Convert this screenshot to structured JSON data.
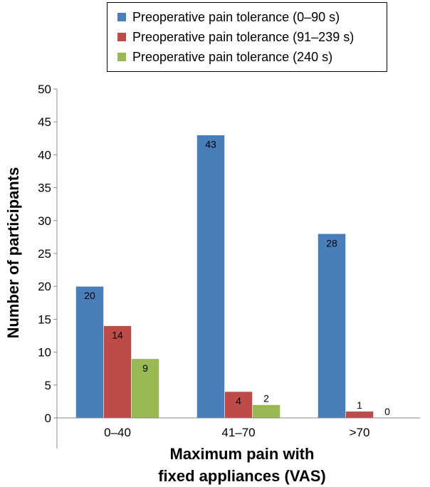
{
  "chart_data": {
    "type": "bar",
    "title": "",
    "xlabel": "Maximum pain with fixed appliances (VAS)",
    "xlabel_lines": [
      "Maximum pain with",
      "fixed appliances (VAS)"
    ],
    "ylabel": "Number of participants",
    "ylim": [
      0,
      50
    ],
    "yticks": [
      0,
      5,
      10,
      15,
      20,
      25,
      30,
      35,
      40,
      45,
      50
    ],
    "categories": [
      "0–40",
      "41–70",
      ">70"
    ],
    "series": [
      {
        "name": "Preoperative pain tolerance (0–90 s)",
        "color": "#4a7ebb",
        "values": [
          20,
          43,
          28
        ]
      },
      {
        "name": "Preoperative pain tolerance (91–239 s)",
        "color": "#be4b48",
        "values": [
          14,
          4,
          1
        ]
      },
      {
        "name": "Preoperative pain tolerance (240 s)",
        "color": "#98b954",
        "values": [
          9,
          2,
          0
        ]
      }
    ],
    "data_labels": true,
    "grid": false,
    "legend_position": "top"
  }
}
